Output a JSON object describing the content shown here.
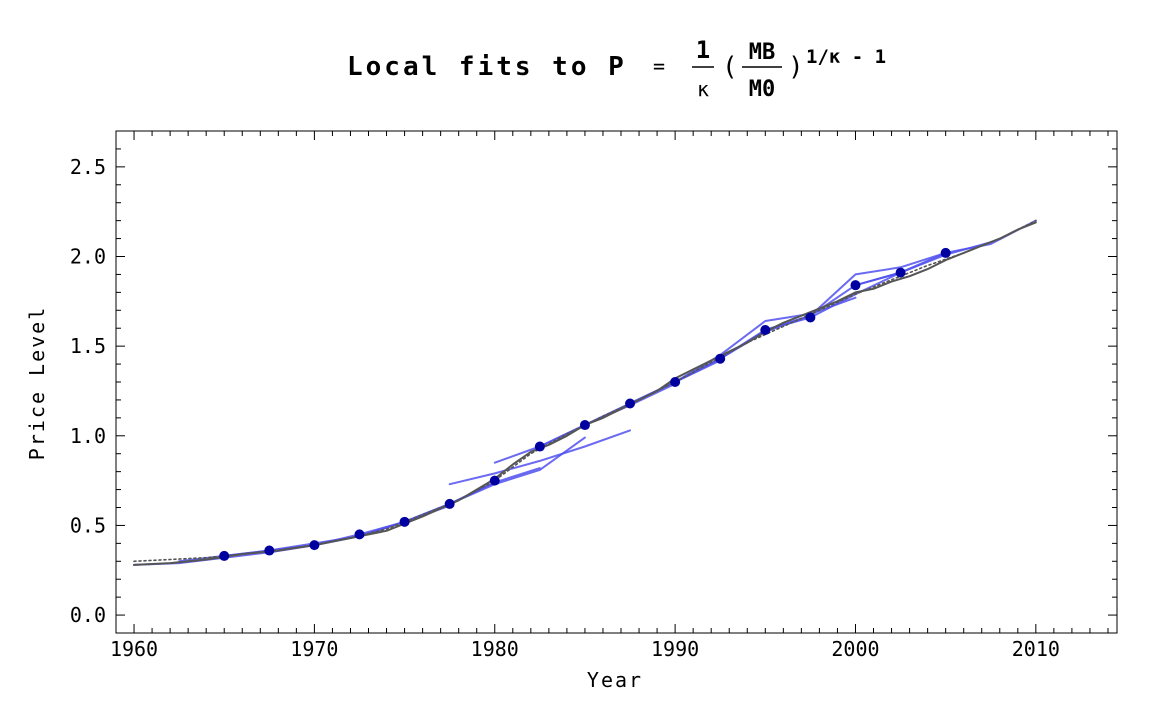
{
  "chart_data": {
    "type": "line",
    "title": {
      "main": "Local fits to P",
      "equals": "=",
      "frac_num": "1",
      "frac_den": "κ",
      "lparen": "(",
      "inner_num": "MB",
      "inner_den": "M0",
      "rparen": ")",
      "exponent": "1/κ - 1"
    },
    "xlabel": "Year",
    "ylabel": "Price Level",
    "xlim": [
      1959,
      2014.5
    ],
    "ylim": [
      -0.1,
      2.7
    ],
    "x_ticks": [
      1960,
      1970,
      1980,
      1990,
      2000,
      2010
    ],
    "y_ticks": [
      {
        "value": 0.0,
        "label": "0.0"
      },
      {
        "value": 0.5,
        "label": "0.5"
      },
      {
        "value": 1.0,
        "label": "1.0"
      },
      {
        "value": 1.5,
        "label": "1.5"
      },
      {
        "value": 2.0,
        "label": "2.0"
      },
      {
        "value": 2.5,
        "label": "2.5"
      }
    ],
    "colors": {
      "data_line": "#555555",
      "fit_line": "#5050f0",
      "fit_dot": "#0000a0",
      "trend_dotted": "#555555"
    },
    "series": [
      {
        "role": "data",
        "style": "solid",
        "points": [
          [
            1960,
            0.28
          ],
          [
            1962,
            0.29
          ],
          [
            1964,
            0.31
          ],
          [
            1966,
            0.34
          ],
          [
            1968,
            0.36
          ],
          [
            1970,
            0.39
          ],
          [
            1972,
            0.43
          ],
          [
            1974,
            0.47
          ],
          [
            1976,
            0.55
          ],
          [
            1978,
            0.64
          ],
          [
            1980,
            0.76
          ],
          [
            1981,
            0.84
          ],
          [
            1982,
            0.91
          ],
          [
            1983,
            0.95
          ],
          [
            1984,
            1.0
          ],
          [
            1985,
            1.06
          ],
          [
            1986,
            1.1
          ],
          [
            1987,
            1.15
          ],
          [
            1988,
            1.2
          ],
          [
            1989,
            1.25
          ],
          [
            1990,
            1.32
          ],
          [
            1991,
            1.37
          ],
          [
            1992,
            1.42
          ],
          [
            1993,
            1.47
          ],
          [
            1994,
            1.52
          ],
          [
            1995,
            1.58
          ],
          [
            1996,
            1.63
          ],
          [
            1997,
            1.67
          ],
          [
            1998,
            1.71
          ],
          [
            1999,
            1.75
          ],
          [
            2000,
            1.8
          ],
          [
            2001,
            1.82
          ],
          [
            2002,
            1.86
          ],
          [
            2003,
            1.89
          ],
          [
            2004,
            1.93
          ],
          [
            2005,
            1.98
          ],
          [
            2006,
            2.02
          ],
          [
            2007,
            2.06
          ],
          [
            2008,
            2.1
          ],
          [
            2009,
            2.15
          ],
          [
            2010,
            2.19
          ]
        ]
      },
      {
        "role": "trend",
        "style": "dotted",
        "points": [
          [
            1960,
            0.3
          ],
          [
            1962,
            0.31
          ],
          [
            1964,
            0.32
          ],
          [
            1966,
            0.34
          ],
          [
            1968,
            0.36
          ],
          [
            1970,
            0.39
          ],
          [
            1972,
            0.43
          ],
          [
            1974,
            0.48
          ],
          [
            1976,
            0.56
          ],
          [
            1978,
            0.64
          ],
          [
            1980,
            0.75
          ],
          [
            1982,
            0.9
          ],
          [
            1984,
            1.01
          ],
          [
            1986,
            1.11
          ],
          [
            1988,
            1.2
          ],
          [
            1990,
            1.3
          ],
          [
            1992,
            1.41
          ],
          [
            1994,
            1.52
          ],
          [
            1996,
            1.61
          ],
          [
            1998,
            1.7
          ],
          [
            2000,
            1.79
          ],
          [
            2002,
            1.87
          ],
          [
            2004,
            1.95
          ],
          [
            2006,
            2.02
          ],
          [
            2008,
            2.1
          ],
          [
            2010,
            2.2
          ]
        ]
      },
      {
        "role": "fit",
        "style": "solid",
        "points": [
          [
            1960,
            0.28
          ],
          [
            1962.5,
            0.29
          ],
          [
            1965,
            0.32
          ],
          [
            1967.5,
            0.35
          ],
          [
            1970,
            0.39
          ]
        ]
      },
      {
        "role": "fit",
        "style": "solid",
        "points": [
          [
            1962.5,
            0.3
          ],
          [
            1965,
            0.33
          ],
          [
            1967.5,
            0.36
          ],
          [
            1970,
            0.4
          ],
          [
            1972.5,
            0.44
          ]
        ]
      },
      {
        "role": "fit",
        "style": "solid",
        "points": [
          [
            1965,
            0.33
          ],
          [
            1967.5,
            0.36
          ],
          [
            1970,
            0.39
          ],
          [
            1972.5,
            0.44
          ],
          [
            1975,
            0.52
          ]
        ]
      },
      {
        "role": "fit",
        "style": "solid",
        "points": [
          [
            1967.5,
            0.35
          ],
          [
            1970,
            0.39
          ],
          [
            1972.5,
            0.45
          ],
          [
            1975,
            0.52
          ],
          [
            1977.5,
            0.61
          ]
        ]
      },
      {
        "role": "fit",
        "style": "solid",
        "points": [
          [
            1970,
            0.39
          ],
          [
            1972.5,
            0.44
          ],
          [
            1975,
            0.52
          ],
          [
            1977.5,
            0.62
          ],
          [
            1980,
            0.74
          ]
        ]
      },
      {
        "role": "fit",
        "style": "solid",
        "points": [
          [
            1972.5,
            0.44
          ],
          [
            1975,
            0.52
          ],
          [
            1977.5,
            0.62
          ],
          [
            1980,
            0.74
          ],
          [
            1982.5,
            0.82
          ]
        ]
      },
      {
        "role": "fit",
        "style": "solid",
        "points": [
          [
            1975,
            0.52
          ],
          [
            1977.5,
            0.62
          ],
          [
            1980,
            0.73
          ],
          [
            1982.5,
            0.81
          ],
          [
            1985,
            0.99
          ]
        ]
      },
      {
        "role": "fit",
        "style": "solid",
        "points": [
          [
            1977.5,
            0.73
          ],
          [
            1980,
            0.79
          ],
          [
            1982.5,
            0.86
          ],
          [
            1985,
            0.94
          ],
          [
            1987.5,
            1.03
          ]
        ]
      },
      {
        "role": "fit",
        "style": "solid",
        "points": [
          [
            1980,
            0.85
          ],
          [
            1982.5,
            0.94
          ],
          [
            1985,
            1.06
          ],
          [
            1987.5,
            1.17
          ],
          [
            1990,
            1.29
          ]
        ]
      },
      {
        "role": "fit",
        "style": "solid",
        "points": [
          [
            1982.5,
            0.94
          ],
          [
            1985,
            1.06
          ],
          [
            1987.5,
            1.18
          ],
          [
            1990,
            1.3
          ],
          [
            1992.5,
            1.42
          ]
        ]
      },
      {
        "role": "fit",
        "style": "solid",
        "points": [
          [
            1985,
            1.06
          ],
          [
            1987.5,
            1.18
          ],
          [
            1990,
            1.3
          ],
          [
            1992.5,
            1.43
          ],
          [
            1995,
            1.59
          ]
        ]
      },
      {
        "role": "fit",
        "style": "solid",
        "points": [
          [
            1987.5,
            1.18
          ],
          [
            1990,
            1.3
          ],
          [
            1992.5,
            1.43
          ],
          [
            1995,
            1.59
          ],
          [
            1997.5,
            1.66
          ]
        ]
      },
      {
        "role": "fit",
        "style": "solid",
        "points": [
          [
            1990,
            1.3
          ],
          [
            1992.5,
            1.45
          ],
          [
            1995,
            1.64
          ],
          [
            1997.5,
            1.68
          ],
          [
            2000,
            1.77
          ]
        ]
      },
      {
        "role": "fit",
        "style": "solid",
        "points": [
          [
            1992.5,
            1.43
          ],
          [
            1995,
            1.58
          ],
          [
            1997.5,
            1.67
          ],
          [
            2000,
            1.84
          ],
          [
            2002.5,
            1.91
          ]
        ]
      },
      {
        "role": "fit",
        "style": "solid",
        "points": [
          [
            1995,
            1.59
          ],
          [
            1997.5,
            1.67
          ],
          [
            2000,
            1.9
          ],
          [
            2002.5,
            1.94
          ],
          [
            2005,
            2.02
          ]
        ]
      },
      {
        "role": "fit",
        "style": "solid",
        "points": [
          [
            1997.5,
            1.66
          ],
          [
            2000,
            1.79
          ],
          [
            2002.5,
            1.91
          ],
          [
            2005,
            2.01
          ],
          [
            2007.5,
            2.08
          ]
        ]
      },
      {
        "role": "fit",
        "style": "solid",
        "points": [
          [
            2000,
            1.84
          ],
          [
            2002.5,
            1.91
          ],
          [
            2005,
            2.02
          ],
          [
            2007.5,
            2.07
          ],
          [
            2010,
            2.2
          ]
        ]
      }
    ],
    "highlight_points": [
      [
        1965,
        0.33
      ],
      [
        1967.5,
        0.36
      ],
      [
        1970,
        0.39
      ],
      [
        1972.5,
        0.45
      ],
      [
        1975,
        0.52
      ],
      [
        1977.5,
        0.62
      ],
      [
        1980,
        0.75
      ],
      [
        1982.5,
        0.94
      ],
      [
        1985,
        1.06
      ],
      [
        1987.5,
        1.18
      ],
      [
        1990,
        1.3
      ],
      [
        1992.5,
        1.43
      ],
      [
        1995,
        1.59
      ],
      [
        1997.5,
        1.66
      ],
      [
        2000,
        1.84
      ],
      [
        2002.5,
        1.91
      ],
      [
        2005,
        2.02
      ]
    ]
  }
}
